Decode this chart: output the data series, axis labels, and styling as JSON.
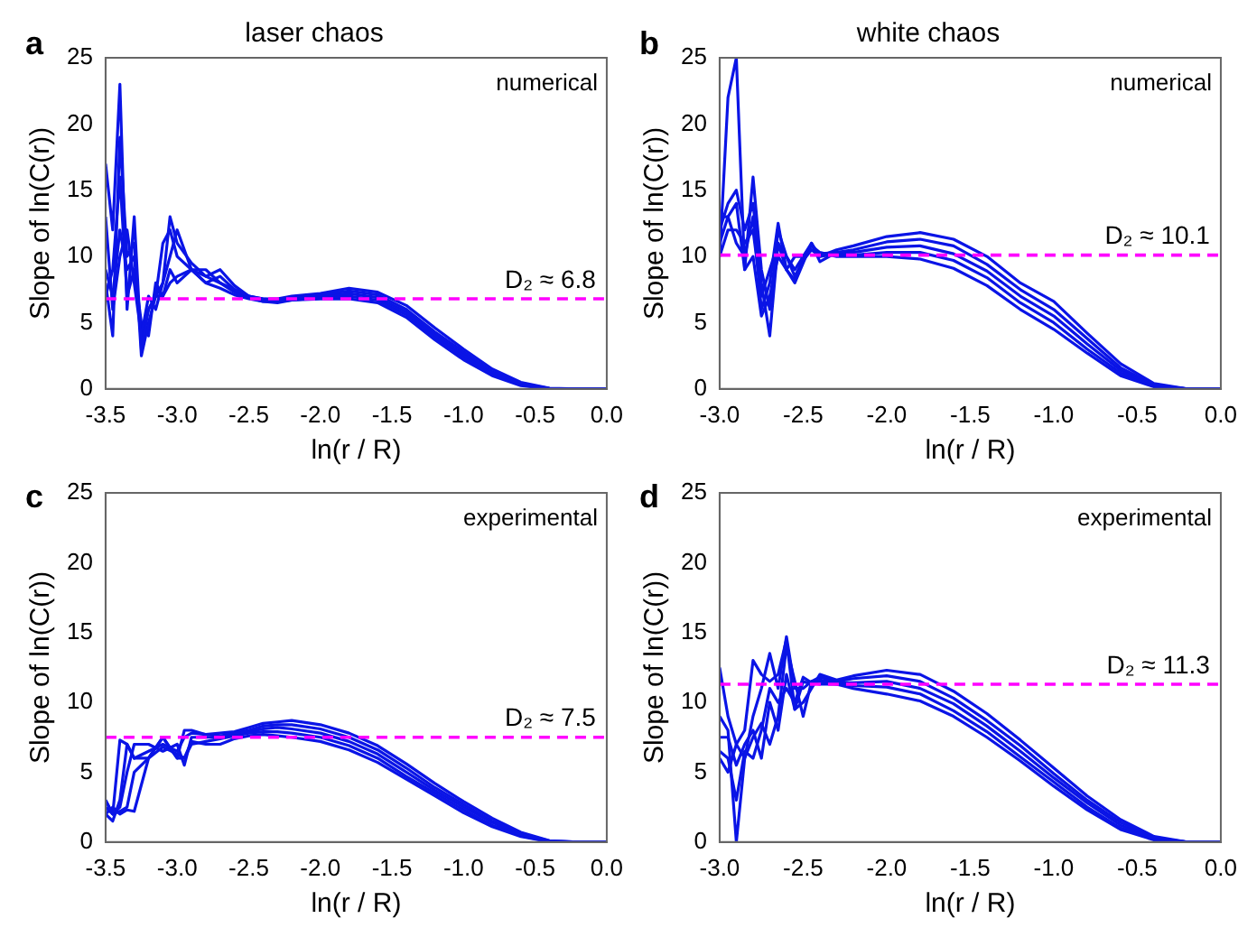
{
  "chart_data": [
    {
      "type": "line",
      "title": "laser chaos",
      "xlabel": "ln(r / R)",
      "ylabel": "Slope of ln(C(r))",
      "annotations": [
        "a",
        "numerical"
      ],
      "grid": false,
      "legend": false,
      "marker": "none",
      "line_style": "solid",
      "xlim": [
        -3.5,
        0
      ],
      "xticks": [
        {
          "value": -3.5,
          "label": "-3.5"
        },
        {
          "value": -3,
          "label": "-3.0"
        },
        {
          "value": -2.5,
          "label": "-2.5"
        },
        {
          "value": -2,
          "label": "-2.0"
        },
        {
          "value": -1.5,
          "label": "-1.5"
        },
        {
          "value": -1,
          "label": "-1.0"
        },
        {
          "value": -0.5,
          "label": "-0.5"
        },
        {
          "value": 0,
          "label": "0.0"
        }
      ],
      "ylim": [
        0,
        25
      ],
      "yticks": [
        0,
        5,
        10,
        15,
        20,
        25
      ],
      "ref_lines": [
        {
          "axis": "y",
          "value": 6.8,
          "label": "D₂ ≈ 6.8",
          "color": "#ff00ff",
          "line_style": "dashed"
        }
      ],
      "x": [
        -3.5,
        -3.45,
        -3.4,
        -3.35,
        -3.3,
        -3.25,
        -3.2,
        -3.15,
        -3.1,
        -3.05,
        -3.0,
        -2.9,
        -2.8,
        -2.7,
        -2.6,
        -2.5,
        -2.4,
        -2.3,
        -2.2,
        -2.0,
        -1.8,
        -1.6,
        -1.4,
        -1.2,
        -1.0,
        -0.8,
        -0.6,
        -0.4,
        -0.2,
        0.0
      ],
      "series": [
        {
          "color": "#0a14e6",
          "values": [
            17,
            12,
            23,
            6,
            13,
            3,
            6,
            7,
            11,
            12,
            10,
            9,
            9,
            8,
            7.5,
            7,
            6.8,
            6.8,
            7,
            7.2,
            7.6,
            7.3,
            6.3,
            4.6,
            3.0,
            1.5,
            0.5,
            0.05,
            0,
            0
          ]
        },
        {
          "color": "#0a14e6",
          "values": [
            8,
            4,
            19,
            10,
            11,
            2.5,
            5,
            7,
            8,
            13,
            11,
            9.5,
            8.5,
            9,
            7.8,
            7,
            6.8,
            6.7,
            6.9,
            7.1,
            7.4,
            7.1,
            6.0,
            4.3,
            2.8,
            1.3,
            0.4,
            0.03,
            0,
            0
          ]
        },
        {
          "color": "#0a14e6",
          "values": [
            13,
            6,
            10,
            12,
            8,
            4,
            7,
            6,
            8,
            10,
            12,
            9,
            8,
            8.5,
            7.5,
            7,
            6.7,
            6.6,
            6.8,
            7.0,
            7.2,
            6.9,
            5.8,
            4.1,
            2.6,
            1.2,
            0.35,
            0.02,
            0,
            0
          ]
        },
        {
          "color": "#0a14e6",
          "values": [
            7,
            9,
            16,
            7,
            9,
            5,
            4,
            8,
            7,
            9,
            8,
            9,
            8.5,
            8,
            7.3,
            6.9,
            6.6,
            6.6,
            6.7,
            6.9,
            7.0,
            6.7,
            5.6,
            3.9,
            2.4,
            1.1,
            0.3,
            0.01,
            0,
            0
          ]
        },
        {
          "color": "#0a14e6",
          "values": [
            9,
            7,
            12,
            9,
            10,
            4,
            6,
            7,
            7,
            8,
            8.5,
            9,
            8,
            7.6,
            7.1,
            6.8,
            6.6,
            6.5,
            6.7,
            6.8,
            6.8,
            6.5,
            5.4,
            3.7,
            2.2,
            1.0,
            0.25,
            0,
            0,
            0
          ]
        }
      ]
    },
    {
      "type": "line",
      "title": "white chaos",
      "xlabel": "ln(r / R)",
      "ylabel": "Slope of ln(C(r))",
      "annotations": [
        "b",
        "numerical"
      ],
      "grid": false,
      "legend": false,
      "marker": "none",
      "line_style": "solid",
      "xlim": [
        -3,
        0
      ],
      "xticks": [
        {
          "value": -3,
          "label": "-3.0"
        },
        {
          "value": -2.5,
          "label": "-2.5"
        },
        {
          "value": -2,
          "label": "-2.0"
        },
        {
          "value": -1.5,
          "label": "-1.5"
        },
        {
          "value": -1,
          "label": "-1.0"
        },
        {
          "value": -0.5,
          "label": "-0.5"
        },
        {
          "value": 0,
          "label": "0.0"
        }
      ],
      "ylim": [
        0,
        25
      ],
      "yticks": [
        0,
        5,
        10,
        15,
        20,
        25
      ],
      "ref_lines": [
        {
          "axis": "y",
          "value": 10.1,
          "label": "D₂ ≈ 10.1",
          "color": "#ff00ff",
          "line_style": "dashed"
        }
      ],
      "x": [
        -3.0,
        -2.95,
        -2.9,
        -2.85,
        -2.8,
        -2.75,
        -2.7,
        -2.65,
        -2.6,
        -2.55,
        -2.5,
        -2.45,
        -2.4,
        -2.3,
        -2.2,
        -2.0,
        -1.8,
        -1.6,
        -1.4,
        -1.2,
        -1.0,
        -0.8,
        -0.6,
        -0.4,
        -0.2,
        0.0
      ],
      "series": [
        {
          "color": "#0a14e6",
          "values": [
            10,
            22,
            25,
            9,
            16,
            9,
            6,
            12,
            10,
            9,
            10,
            11,
            10,
            10.5,
            10.8,
            11.5,
            11.8,
            11.3,
            10,
            8,
            6.6,
            4.2,
            1.9,
            0.4,
            0,
            0
          ]
        },
        {
          "color": "#0a14e6",
          "values": [
            12,
            14,
            15,
            12,
            14,
            8,
            4,
            11,
            9,
            10,
            10,
            10.5,
            10.2,
            10.3,
            10.5,
            11.1,
            11.3,
            10.8,
            9.4,
            7.5,
            6.0,
            3.8,
            1.6,
            0.3,
            0,
            0
          ]
        },
        {
          "color": "#0a14e6",
          "values": [
            13,
            13,
            11,
            10,
            13,
            6,
            8,
            12.5,
            9,
            8,
            9.5,
            11,
            9.6,
            10.3,
            10.3,
            10.7,
            10.8,
            10.2,
            8.9,
            7.0,
            5.5,
            3.4,
            1.4,
            0.25,
            0,
            0
          ]
        },
        {
          "color": "#0a14e6",
          "values": [
            10,
            12,
            12,
            11,
            12,
            7,
            9,
            11,
            10,
            8.5,
            9.7,
            10.5,
            10,
            10.2,
            10.1,
            10.3,
            10.3,
            9.7,
            8.4,
            6.5,
            5.0,
            3.0,
            1.2,
            0.2,
            0,
            0
          ]
        },
        {
          "color": "#0a14e6",
          "values": [
            11,
            13,
            14,
            9,
            10,
            5.5,
            7,
            10,
            9,
            8.2,
            10,
            10.8,
            10.3,
            10,
            10,
            10,
            9.8,
            9.1,
            7.8,
            6.0,
            4.5,
            2.7,
            1.0,
            0.15,
            0,
            0
          ]
        }
      ]
    },
    {
      "type": "line",
      "xlabel": "ln(r / R)",
      "ylabel": "Slope of ln(C(r))",
      "annotations": [
        "c",
        "experimental"
      ],
      "grid": false,
      "legend": false,
      "marker": "none",
      "line_style": "solid",
      "xlim": [
        -3.5,
        0
      ],
      "xticks": [
        {
          "value": -3.5,
          "label": "-3.5"
        },
        {
          "value": -3,
          "label": "-3.0"
        },
        {
          "value": -2.5,
          "label": "-2.5"
        },
        {
          "value": -2,
          "label": "-2.0"
        },
        {
          "value": -1.5,
          "label": "-1.5"
        },
        {
          "value": -1,
          "label": "-1.0"
        },
        {
          "value": -0.5,
          "label": "-0.5"
        },
        {
          "value": 0,
          "label": "0.0"
        }
      ],
      "ylim": [
        0,
        25
      ],
      "yticks": [
        0,
        5,
        10,
        15,
        20,
        25
      ],
      "ref_lines": [
        {
          "axis": "y",
          "value": 7.5,
          "label": "D₂ ≈ 7.5",
          "color": "#ff00ff",
          "line_style": "dashed"
        }
      ],
      "x": [
        -3.5,
        -3.45,
        -3.4,
        -3.35,
        -3.3,
        -3.2,
        -3.1,
        -3.0,
        -2.95,
        -2.9,
        -2.8,
        -2.7,
        -2.6,
        -2.5,
        -2.4,
        -2.3,
        -2.2,
        -2.0,
        -1.8,
        -1.6,
        -1.4,
        -1.2,
        -1.0,
        -0.8,
        -0.6,
        -0.4,
        -0.2,
        0.0
      ],
      "series": [
        {
          "color": "#0a14e6",
          "values": [
            3,
            2,
            7.3,
            7,
            6,
            6,
            7.5,
            6,
            8,
            8,
            7.7,
            7.8,
            7.9,
            8.2,
            8.5,
            8.6,
            8.7,
            8.4,
            7.8,
            6.9,
            5.6,
            4.2,
            2.9,
            1.7,
            0.7,
            0.1,
            0,
            0
          ]
        },
        {
          "color": "#0a14e6",
          "values": [
            2,
            1.5,
            3,
            7,
            6,
            6.5,
            7,
            6.5,
            7.5,
            7.8,
            7.7,
            7.6,
            7.8,
            8,
            8.3,
            8.4,
            8.4,
            8.1,
            7.5,
            6.6,
            5.3,
            3.9,
            2.7,
            1.5,
            0.6,
            0.08,
            0,
            0
          ]
        },
        {
          "color": "#0a14e6",
          "values": [
            3,
            2,
            2.5,
            5,
            7,
            7,
            6.5,
            7,
            5.5,
            7.5,
            7.5,
            7.5,
            7.7,
            7.9,
            8.1,
            8.2,
            8.1,
            7.8,
            7.2,
            6.3,
            5.0,
            3.7,
            2.5,
            1.4,
            0.5,
            0.05,
            0,
            0
          ]
        },
        {
          "color": "#0a14e6",
          "values": [
            2.5,
            2,
            2.2,
            2.5,
            5,
            6,
            7.5,
            6,
            6,
            7,
            7.2,
            7.4,
            7.6,
            7.8,
            7.9,
            7.9,
            7.8,
            7.5,
            6.9,
            6.0,
            4.7,
            3.5,
            2.3,
            1.2,
            0.45,
            0.03,
            0,
            0
          ]
        },
        {
          "color": "#0a14e6",
          "values": [
            2,
            2.5,
            2,
            2.3,
            2.2,
            6,
            6.8,
            6.3,
            6,
            7.2,
            7,
            7.0,
            7.4,
            7.6,
            7.7,
            7.6,
            7.5,
            7.2,
            6.6,
            5.7,
            4.5,
            3.3,
            2.1,
            1.1,
            0.4,
            0.02,
            0,
            0
          ]
        }
      ]
    },
    {
      "type": "line",
      "xlabel": "ln(r / R)",
      "ylabel": "Slope of ln(C(r))",
      "annotations": [
        "d",
        "experimental"
      ],
      "grid": false,
      "legend": false,
      "marker": "none",
      "line_style": "solid",
      "xlim": [
        -3,
        0
      ],
      "xticks": [
        {
          "value": -3,
          "label": "-3.0"
        },
        {
          "value": -2.5,
          "label": "-2.5"
        },
        {
          "value": -2,
          "label": "-2.0"
        },
        {
          "value": -1.5,
          "label": "-1.5"
        },
        {
          "value": -1,
          "label": "-1.0"
        },
        {
          "value": -0.5,
          "label": "-0.5"
        },
        {
          "value": 0,
          "label": "0.0"
        }
      ],
      "ylim": [
        0,
        25
      ],
      "yticks": [
        0,
        5,
        10,
        15,
        20,
        25
      ],
      "ref_lines": [
        {
          "axis": "y",
          "value": 11.3,
          "label": "D₂ ≈ 11.3",
          "color": "#ff00ff",
          "line_style": "dashed"
        }
      ],
      "x": [
        -3.0,
        -2.95,
        -2.9,
        -2.85,
        -2.8,
        -2.75,
        -2.7,
        -2.65,
        -2.6,
        -2.55,
        -2.5,
        -2.45,
        -2.4,
        -2.3,
        -2.2,
        -2.0,
        -1.8,
        -1.6,
        -1.4,
        -1.2,
        -1.0,
        -0.8,
        -0.6,
        -0.4,
        -0.2,
        0.0
      ],
      "series": [
        {
          "color": "#0a14e6",
          "values": [
            12.5,
            9,
            7,
            8,
            13,
            12,
            11.5,
            12,
            14.5,
            9.5,
            10,
            11,
            12,
            11.6,
            11.9,
            12.3,
            12.0,
            10.8,
            9.2,
            7.3,
            5.3,
            3.3,
            1.6,
            0.4,
            0,
            0
          ]
        },
        {
          "color": "#0a14e6",
          "values": [
            9,
            8,
            0,
            6,
            9,
            11,
            13.5,
            11,
            14.7,
            11,
            11,
            11.5,
            11.8,
            11.5,
            11.7,
            11.9,
            11.5,
            10.3,
            8.7,
            6.9,
            4.9,
            3.0,
            1.4,
            0.3,
            0,
            0
          ]
        },
        {
          "color": "#0a14e6",
          "values": [
            7.5,
            7.5,
            5.5,
            7,
            8,
            6,
            10,
            8,
            12,
            9.5,
            11.5,
            11.3,
            11.6,
            11.4,
            11.4,
            11.5,
            11.0,
            9.9,
            8.3,
            6.5,
            4.6,
            2.8,
            1.2,
            0.25,
            0,
            0
          ]
        },
        {
          "color": "#0a14e6",
          "values": [
            6,
            5,
            7,
            6,
            7.5,
            8.5,
            7,
            9,
            14,
            11.5,
            9,
            11.5,
            11.5,
            11.3,
            11.2,
            11.1,
            10.6,
            9.4,
            7.9,
            6.1,
            4.3,
            2.5,
            1.0,
            0.2,
            0,
            0
          ]
        },
        {
          "color": "#0a14e6",
          "values": [
            6.5,
            6,
            3,
            6.5,
            6,
            8,
            11,
            10,
            11,
            10,
            11.8,
            11.4,
            11.3,
            11.3,
            11.0,
            10.6,
            10.1,
            9.0,
            7.5,
            5.8,
            4.0,
            2.3,
            0.9,
            0.15,
            0,
            0
          ]
        }
      ]
    }
  ]
}
